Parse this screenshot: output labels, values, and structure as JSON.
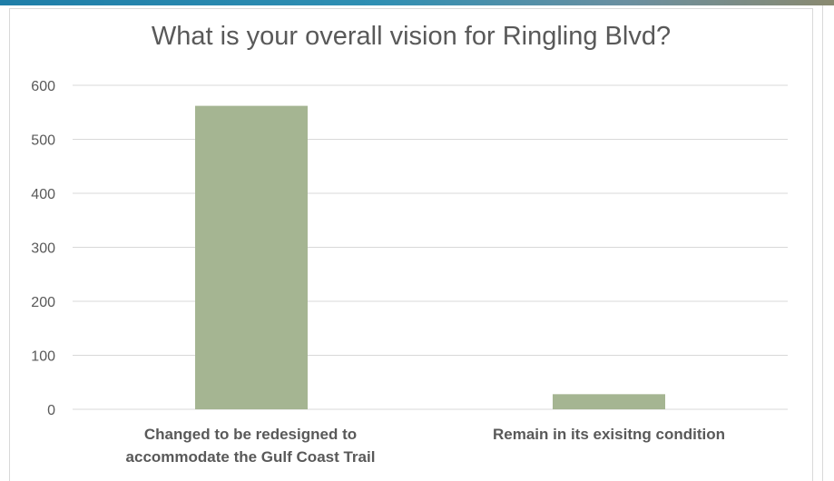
{
  "chart_data": {
    "type": "bar",
    "title": "What is your overall vision for Ringling Blvd?",
    "categories": [
      "Changed to be redesigned to accommodate the Gulf Coast Trail",
      "Remain in its exisitng condition"
    ],
    "category_lines": [
      [
        "Changed to be redesigned to",
        "accommodate the Gulf Coast Trail"
      ],
      [
        "Remain in its exisitng condition"
      ]
    ],
    "values": [
      562,
      28
    ],
    "ylim": [
      0,
      600
    ],
    "yticks": [
      "0",
      "100",
      "200",
      "300",
      "400",
      "500",
      "600"
    ],
    "xlabel": "",
    "ylabel": "",
    "grid": true,
    "bar_color": "#a5b592",
    "grid_color": "#d9d9d9",
    "text_color": "#595959"
  }
}
